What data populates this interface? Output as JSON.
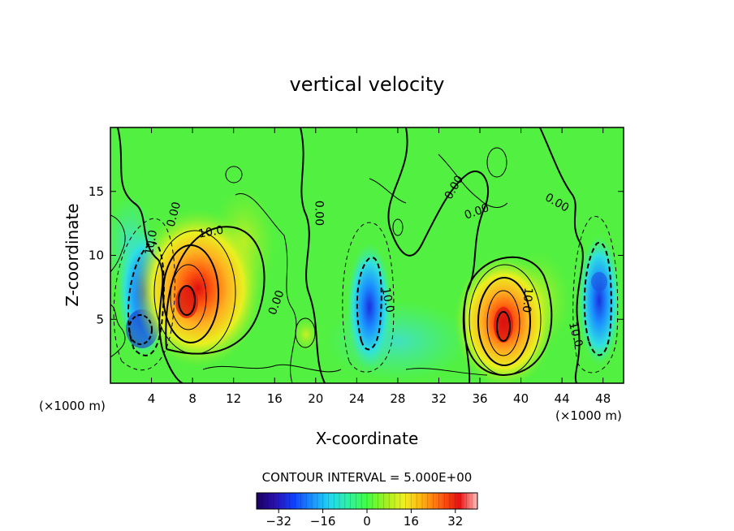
{
  "chart_data": {
    "type": "heatmap",
    "title": "vertical velocity",
    "xlabel": "X-coordinate",
    "ylabel": "Z-coordinate",
    "x_units_left": "(×1000 m)",
    "x_units_right": "(×1000 m)",
    "xlim": [
      0,
      50
    ],
    "ylim": [
      0,
      20
    ],
    "xticks": [
      "4",
      "8",
      "12",
      "16",
      "20",
      "24",
      "28",
      "32",
      "36",
      "40",
      "44",
      "48"
    ],
    "yticks": [
      "5",
      "10",
      "15"
    ],
    "grid": false,
    "contour_interval_text": "CONTOUR INTERVAL = 5.000E+00",
    "colorbar": {
      "range": [
        -40,
        40
      ],
      "ticks": [
        "−32",
        "−16",
        "0",
        "16",
        "32"
      ],
      "tick_values": [
        -32,
        -16,
        0,
        16,
        32
      ],
      "colors": [
        "#1a0060",
        "#2a10b0",
        "#1040ff",
        "#1a90ff",
        "#20d8f0",
        "#30f0a0",
        "#40ff40",
        "#a0f020",
        "#f0f020",
        "#ffb010",
        "#ff6010",
        "#e81010",
        "#ffc0c0"
      ]
    },
    "contour_labels": [
      {
        "text": "10.0",
        "x": 4.0,
        "y": 11.0,
        "angle": -80
      },
      {
        "text": "0.00",
        "x": 6.2,
        "y": 13.2,
        "angle": -75
      },
      {
        "text": "10.0",
        "x": 9.8,
        "y": 11.8,
        "angle": -10
      },
      {
        "text": "0.00",
        "x": 16.2,
        "y": 6.3,
        "angle": -70
      },
      {
        "text": "0.00",
        "x": 20.3,
        "y": 13.3,
        "angle": 90
      },
      {
        "text": "10.0",
        "x": 27.0,
        "y": 6.5,
        "angle": 80
      },
      {
        "text": "0.00",
        "x": 33.5,
        "y": 15.3,
        "angle": -60
      },
      {
        "text": "0.00",
        "x": 35.7,
        "y": 13.4,
        "angle": -20
      },
      {
        "text": "10.0",
        "x": 40.6,
        "y": 6.5,
        "angle": 95
      },
      {
        "text": "0.00",
        "x": 43.5,
        "y": 14.1,
        "angle": 30
      },
      {
        "text": "10.0",
        "x": 45.3,
        "y": 3.8,
        "angle": 75
      }
    ],
    "series": [
      {
        "kind": "updraft",
        "x": 7.5,
        "z": 6.2,
        "peak": 34
      },
      {
        "kind": "updraft",
        "x": 38.0,
        "z": 4.5,
        "peak": 33
      },
      {
        "kind": "downdraft",
        "x": 3.0,
        "z": 4.2,
        "peak": -32
      },
      {
        "kind": "downdraft",
        "x": 4.0,
        "z": 8.0,
        "peak": -22
      },
      {
        "kind": "downdraft",
        "x": 25.5,
        "z": 5.5,
        "peak": -20
      },
      {
        "kind": "downdraft",
        "x": 47.0,
        "z": 8.0,
        "peak": -20
      },
      {
        "kind": "downdraft",
        "x": 47.5,
        "z": 3.5,
        "peak": -16
      }
    ]
  }
}
